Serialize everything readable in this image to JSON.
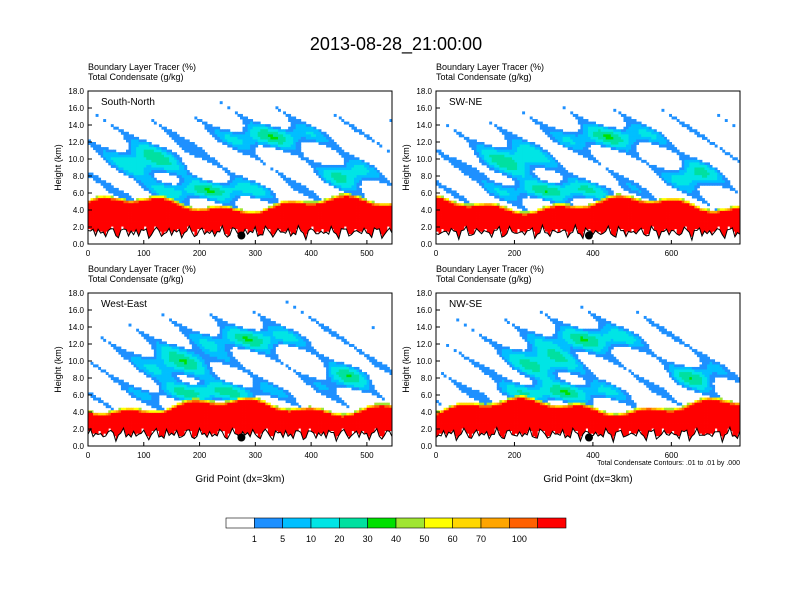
{
  "title": "2013-08-28_21:00:00",
  "chart_data": [
    {
      "type": "heatmap",
      "panel_label": "South-North",
      "title_lines": [
        "Boundary Layer Tracer   (%)",
        "Total Condensate   (g/kg)"
      ],
      "ylabel": "Height (km)",
      "xlabel": "",
      "xlim": [
        0,
        545
      ],
      "ylim": [
        0,
        18
      ],
      "x_ticks": [
        0,
        100,
        200,
        300,
        400,
        500
      ],
      "y_ticks": [
        "0.0",
        "2.0",
        "4.0",
        "6.0",
        "8.0",
        "10.0",
        "12.0",
        "14.0",
        "16.0",
        "18.0"
      ],
      "marker_x": 275,
      "marker_y": 1.0
    },
    {
      "type": "heatmap",
      "panel_label": "SW-NE",
      "title_lines": [
        "Boundary Layer Tracer   (%)",
        "Total Condensate   (g/kg)"
      ],
      "ylabel": "Height (km)",
      "xlabel": "",
      "xlim": [
        0,
        775
      ],
      "ylim": [
        0,
        18
      ],
      "x_ticks": [
        0,
        200,
        400,
        600
      ],
      "y_ticks": [
        "0.0",
        "2.0",
        "4.0",
        "6.0",
        "8.0",
        "10.0",
        "12.0",
        "14.0",
        "16.0",
        "18.0"
      ],
      "marker_x": 390,
      "marker_y": 1.0
    },
    {
      "type": "heatmap",
      "panel_label": "West-East",
      "title_lines": [
        "Boundary Layer Tracer   (%)",
        "Total Condensate   (g/kg)"
      ],
      "ylabel": "Height (km)",
      "xlabel": "Grid Point (dx=3km)",
      "xlim": [
        0,
        545
      ],
      "ylim": [
        0,
        18
      ],
      "x_ticks": [
        0,
        100,
        200,
        300,
        400,
        500
      ],
      "y_ticks": [
        "0.0",
        "2.0",
        "4.0",
        "6.0",
        "8.0",
        "10.0",
        "12.0",
        "14.0",
        "16.0",
        "18.0"
      ],
      "marker_x": 275,
      "marker_y": 1.0
    },
    {
      "type": "heatmap",
      "panel_label": "NW-SE",
      "title_lines": [
        "Boundary Layer Tracer   (%)",
        "Total Condensate   (g/kg)"
      ],
      "ylabel": "Height (km)",
      "xlabel": "Grid Point (dx=3km)",
      "xlim": [
        0,
        775
      ],
      "ylim": [
        0,
        18
      ],
      "x_ticks": [
        0,
        200,
        400,
        600
      ],
      "y_ticks": [
        "0.0",
        "2.0",
        "4.0",
        "6.0",
        "8.0",
        "10.0",
        "12.0",
        "14.0",
        "16.0",
        "18.0"
      ],
      "marker_x": 390,
      "marker_y": 1.0,
      "footnote": "Total Condensate Contours: .01 to .01 by .000"
    }
  ],
  "colorbar": {
    "labels": [
      "1",
      "5",
      "10",
      "20",
      "30",
      "40",
      "50",
      "60",
      "70",
      "100"
    ],
    "colors": [
      "#ffffff",
      "#1e90ff",
      "#00bfff",
      "#00e5e5",
      "#00e0a0",
      "#00e000",
      "#a0e632",
      "#ffff00",
      "#ffd700",
      "#ffa500",
      "#ff6000",
      "#ff0000"
    ]
  }
}
